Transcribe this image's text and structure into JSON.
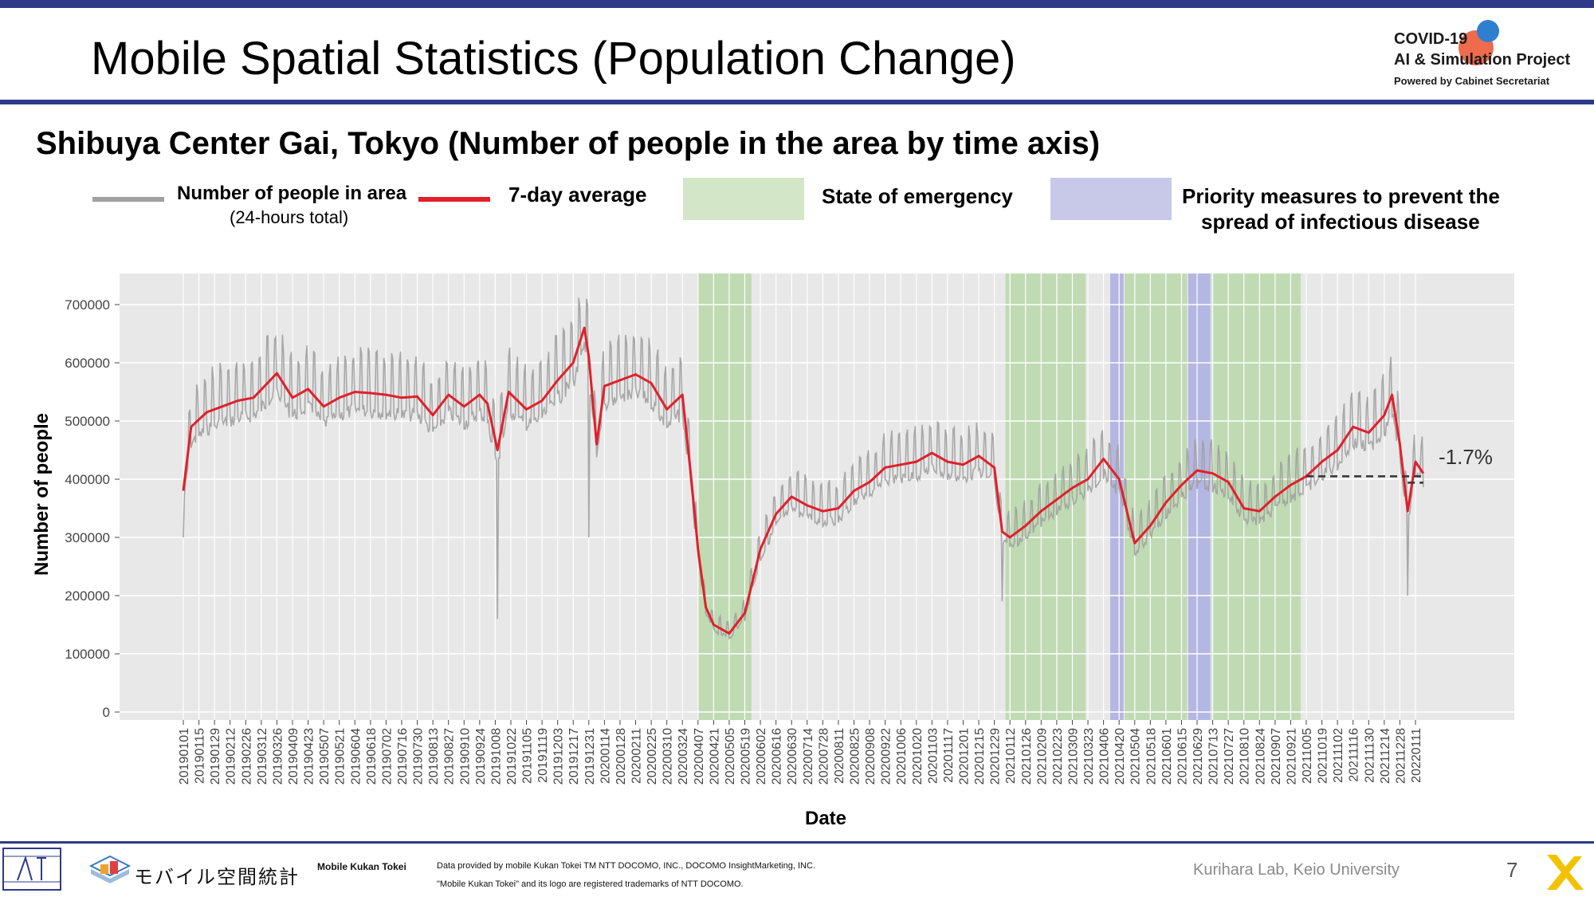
{
  "title": "Mobile Spatial Statistics (Population Change)",
  "logo": {
    "line1": "COVID-19",
    "line2": "AI & Simulation Project",
    "line3": "Powered by Cabinet Secretariat"
  },
  "subtitle": "Shibuya Center Gai, Tokyo (Number of people in the area by time axis)",
  "legend": {
    "daily_label": "Number of people in area",
    "daily_sub": "(24-hours total)",
    "avg_label": "7-day average",
    "emergency_label": "State of emergency",
    "priority_label_line1": "Priority measures to prevent the",
    "priority_label_line2": "spread of infectious disease"
  },
  "colors": {
    "accent": "#2e3a87",
    "daily_line": "#a0a0a0",
    "avg_line": "#e0202a",
    "emergency": "#b9d8aa",
    "priority": "#aaaee0",
    "plot_bg": "#e8e8e8"
  },
  "chart_data": {
    "type": "line",
    "xlabel": "Date",
    "ylabel": "Number of people",
    "ylim": [
      0,
      750000
    ],
    "yticks": [
      0,
      100000,
      200000,
      300000,
      400000,
      500000,
      600000,
      700000
    ],
    "grid": true,
    "x_tick_labels": [
      "20190101",
      "20190115",
      "20190129",
      "20190212",
      "20190226",
      "20190312",
      "20190326",
      "20190409",
      "20190423",
      "20190507",
      "20190521",
      "20190604",
      "20190618",
      "20190702",
      "20190716",
      "20190730",
      "20190813",
      "20190827",
      "20190910",
      "20190924",
      "20191008",
      "20191022",
      "20191105",
      "20191119",
      "20191203",
      "20191217",
      "20191231",
      "20200114",
      "20200128",
      "20200211",
      "20200225",
      "20200310",
      "20200324",
      "20200407",
      "20200421",
      "20200505",
      "20200519",
      "20200602",
      "20200616",
      "20200630",
      "20200714",
      "20200728",
      "20200811",
      "20200825",
      "20200908",
      "20200922",
      "20201006",
      "20201020",
      "20201103",
      "20201117",
      "20201201",
      "20201215",
      "20201229",
      "20210112",
      "20210126",
      "20210209",
      "20210223",
      "20210309",
      "20210323",
      "20210406",
      "20210420",
      "20210504",
      "20210518",
      "20210601",
      "20210615",
      "20210629",
      "20210713",
      "20210727",
      "20210810",
      "20210824",
      "20210907",
      "20210921",
      "20211005",
      "20211019",
      "20211102",
      "20211116",
      "20211130",
      "20211214",
      "20211228",
      "20220111"
    ],
    "bands": [
      {
        "type": "State of emergency",
        "start": "20200407",
        "end": "20200525"
      },
      {
        "type": "State of emergency",
        "start": "20210108",
        "end": "20210321"
      },
      {
        "type": "Priority measures to prevent the spread of infectious disease",
        "start": "20210412",
        "end": "20210424"
      },
      {
        "type": "State of emergency",
        "start": "20210425",
        "end": "20210620"
      },
      {
        "type": "Priority measures to prevent the spread of infectious disease",
        "start": "20210621",
        "end": "20210711"
      },
      {
        "type": "State of emergency",
        "start": "20210712",
        "end": "20210930"
      }
    ],
    "series": [
      {
        "name": "7-day average",
        "points": [
          [
            "20190101",
            380000
          ],
          [
            "20190108",
            490000
          ],
          [
            "20190122",
            515000
          ],
          [
            "20190205",
            525000
          ],
          [
            "20190219",
            535000
          ],
          [
            "20190305",
            540000
          ],
          [
            "20190326",
            582000
          ],
          [
            "20190409",
            540000
          ],
          [
            "20190423",
            555000
          ],
          [
            "20190507",
            525000
          ],
          [
            "20190521",
            540000
          ],
          [
            "20190604",
            550000
          ],
          [
            "20190618",
            548000
          ],
          [
            "20190702",
            545000
          ],
          [
            "20190716",
            540000
          ],
          [
            "20190730",
            542000
          ],
          [
            "20190813",
            510000
          ],
          [
            "20190827",
            545000
          ],
          [
            "20190910",
            525000
          ],
          [
            "20190924",
            545000
          ],
          [
            "20191001",
            530000
          ],
          [
            "20191010",
            450000
          ],
          [
            "20191020",
            550000
          ],
          [
            "20191105",
            520000
          ],
          [
            "20191119",
            535000
          ],
          [
            "20191203",
            570000
          ],
          [
            "20191217",
            600000
          ],
          [
            "20191227",
            660000
          ],
          [
            "20191231",
            610000
          ],
          [
            "20200107",
            460000
          ],
          [
            "20200114",
            560000
          ],
          [
            "20200128",
            570000
          ],
          [
            "20200211",
            580000
          ],
          [
            "20200225",
            565000
          ],
          [
            "20200310",
            520000
          ],
          [
            "20200324",
            545000
          ],
          [
            "20200401",
            400000
          ],
          [
            "20200407",
            280000
          ],
          [
            "20200414",
            180000
          ],
          [
            "20200421",
            150000
          ],
          [
            "20200505",
            135000
          ],
          [
            "20200519",
            170000
          ],
          [
            "20200602",
            280000
          ],
          [
            "20200616",
            340000
          ],
          [
            "20200630",
            370000
          ],
          [
            "20200714",
            355000
          ],
          [
            "20200728",
            345000
          ],
          [
            "20200811",
            350000
          ],
          [
            "20200825",
            380000
          ],
          [
            "20200908",
            395000
          ],
          [
            "20200922",
            420000
          ],
          [
            "20201006",
            425000
          ],
          [
            "20201020",
            430000
          ],
          [
            "20201103",
            445000
          ],
          [
            "20201117",
            430000
          ],
          [
            "20201201",
            425000
          ],
          [
            "20201215",
            440000
          ],
          [
            "20201229",
            420000
          ],
          [
            "20210105",
            310000
          ],
          [
            "20210112",
            300000
          ],
          [
            "20210126",
            320000
          ],
          [
            "20210209",
            345000
          ],
          [
            "20210223",
            365000
          ],
          [
            "20210309",
            385000
          ],
          [
            "20210323",
            400000
          ],
          [
            "20210406",
            435000
          ],
          [
            "20210420",
            400000
          ],
          [
            "20210504",
            290000
          ],
          [
            "20210518",
            320000
          ],
          [
            "20210601",
            360000
          ],
          [
            "20210615",
            390000
          ],
          [
            "20210629",
            415000
          ],
          [
            "20210713",
            410000
          ],
          [
            "20210727",
            395000
          ],
          [
            "20210810",
            350000
          ],
          [
            "20210824",
            345000
          ],
          [
            "20210907",
            370000
          ],
          [
            "20210921",
            390000
          ],
          [
            "20211005",
            405000
          ],
          [
            "20211019",
            430000
          ],
          [
            "20211102",
            450000
          ],
          [
            "20211116",
            490000
          ],
          [
            "20211130",
            480000
          ],
          [
            "20211214",
            510000
          ],
          [
            "20211221",
            545000
          ],
          [
            "20211228",
            460000
          ],
          [
            "20220104",
            345000
          ],
          [
            "20220111",
            430000
          ],
          [
            "20220118",
            410000
          ]
        ]
      },
      {
        "name": "Number of people in area (24-hours total)",
        "spikes": [
          [
            "20190101",
            300000
          ],
          [
            "20191010",
            160000
          ],
          [
            "20191231",
            300000
          ],
          [
            "20210105",
            190000
          ],
          [
            "20220104",
            200000
          ]
        ]
      }
    ],
    "reference_line": {
      "value": 405000,
      "start": "20211005",
      "end": "20220118",
      "style": "dashed"
    },
    "annotations": [
      "-1.7%"
    ]
  },
  "footer": {
    "mobile_jp": "モバイル空間統計",
    "mobile_en": "Mobile Kukan Tokei",
    "provided": "Data provided by mobile Kukan Tokei TM NTT DOCOMO, INC., DOCOMO InsightMarketing, INC.",
    "trademark": "\"Mobile Kukan Tokei\" and its logo are registered trademarks of NTT DOCOMO.",
    "credit": "Kurihara Lab, Keio University",
    "page": "7"
  }
}
